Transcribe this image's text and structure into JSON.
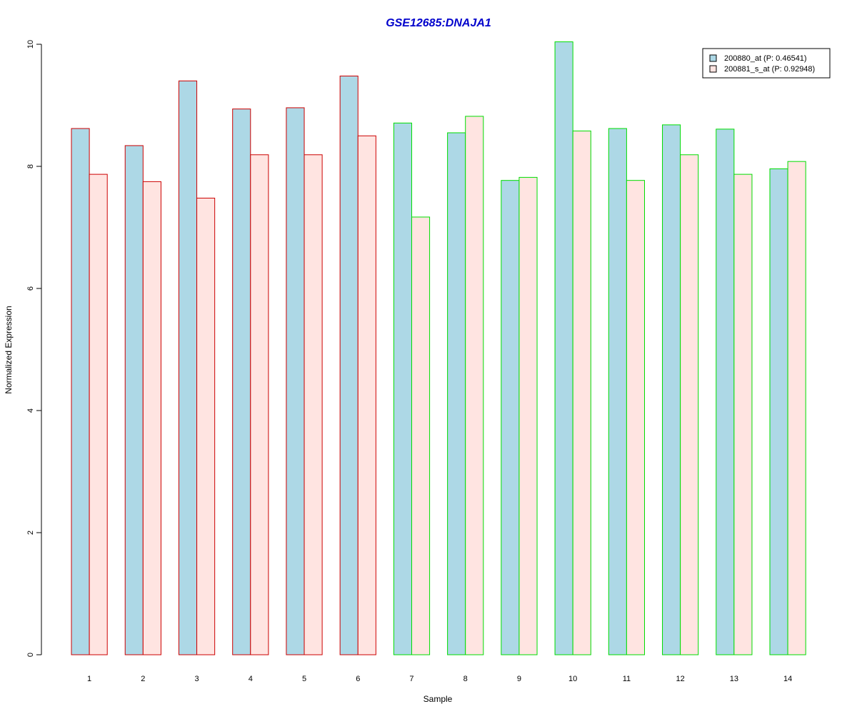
{
  "chart_data": {
    "type": "bar",
    "title": "GSE12685:DNAJA1",
    "xlabel": "Sample",
    "ylabel": "Normalized Expression",
    "ylim": [
      0,
      10
    ],
    "yticks": [
      "0",
      "2",
      "4",
      "6",
      "8",
      "10"
    ],
    "categories": [
      "1",
      "2",
      "3",
      "4",
      "5",
      "6",
      "7",
      "8",
      "9",
      "10",
      "11",
      "12",
      "13",
      "14"
    ],
    "series": [
      {
        "name": "200880_at (P: 0.46541)",
        "fill": "#add8e6",
        "values": [
          8.62,
          8.34,
          9.4,
          8.94,
          8.96,
          9.48,
          8.71,
          8.55,
          7.77,
          10.04,
          8.62,
          8.68,
          8.61,
          7.96
        ]
      },
      {
        "name": "200881_s_at (P: 0.92948)",
        "fill": "#ffe4e1",
        "values": [
          7.87,
          7.75,
          7.48,
          8.19,
          8.19,
          8.5,
          7.17,
          8.82,
          7.82,
          8.58,
          7.77,
          8.19,
          7.87,
          8.08
        ]
      }
    ],
    "group_border_colors": [
      "#cc0000",
      "#cc0000",
      "#cc0000",
      "#cc0000",
      "#cc0000",
      "#cc0000",
      "#00dd00",
      "#00dd00",
      "#00dd00",
      "#00dd00",
      "#00dd00",
      "#00dd00",
      "#00dd00",
      "#00dd00"
    ],
    "title_color": "#0000cc",
    "grid": false,
    "legend_position": "top-right"
  }
}
